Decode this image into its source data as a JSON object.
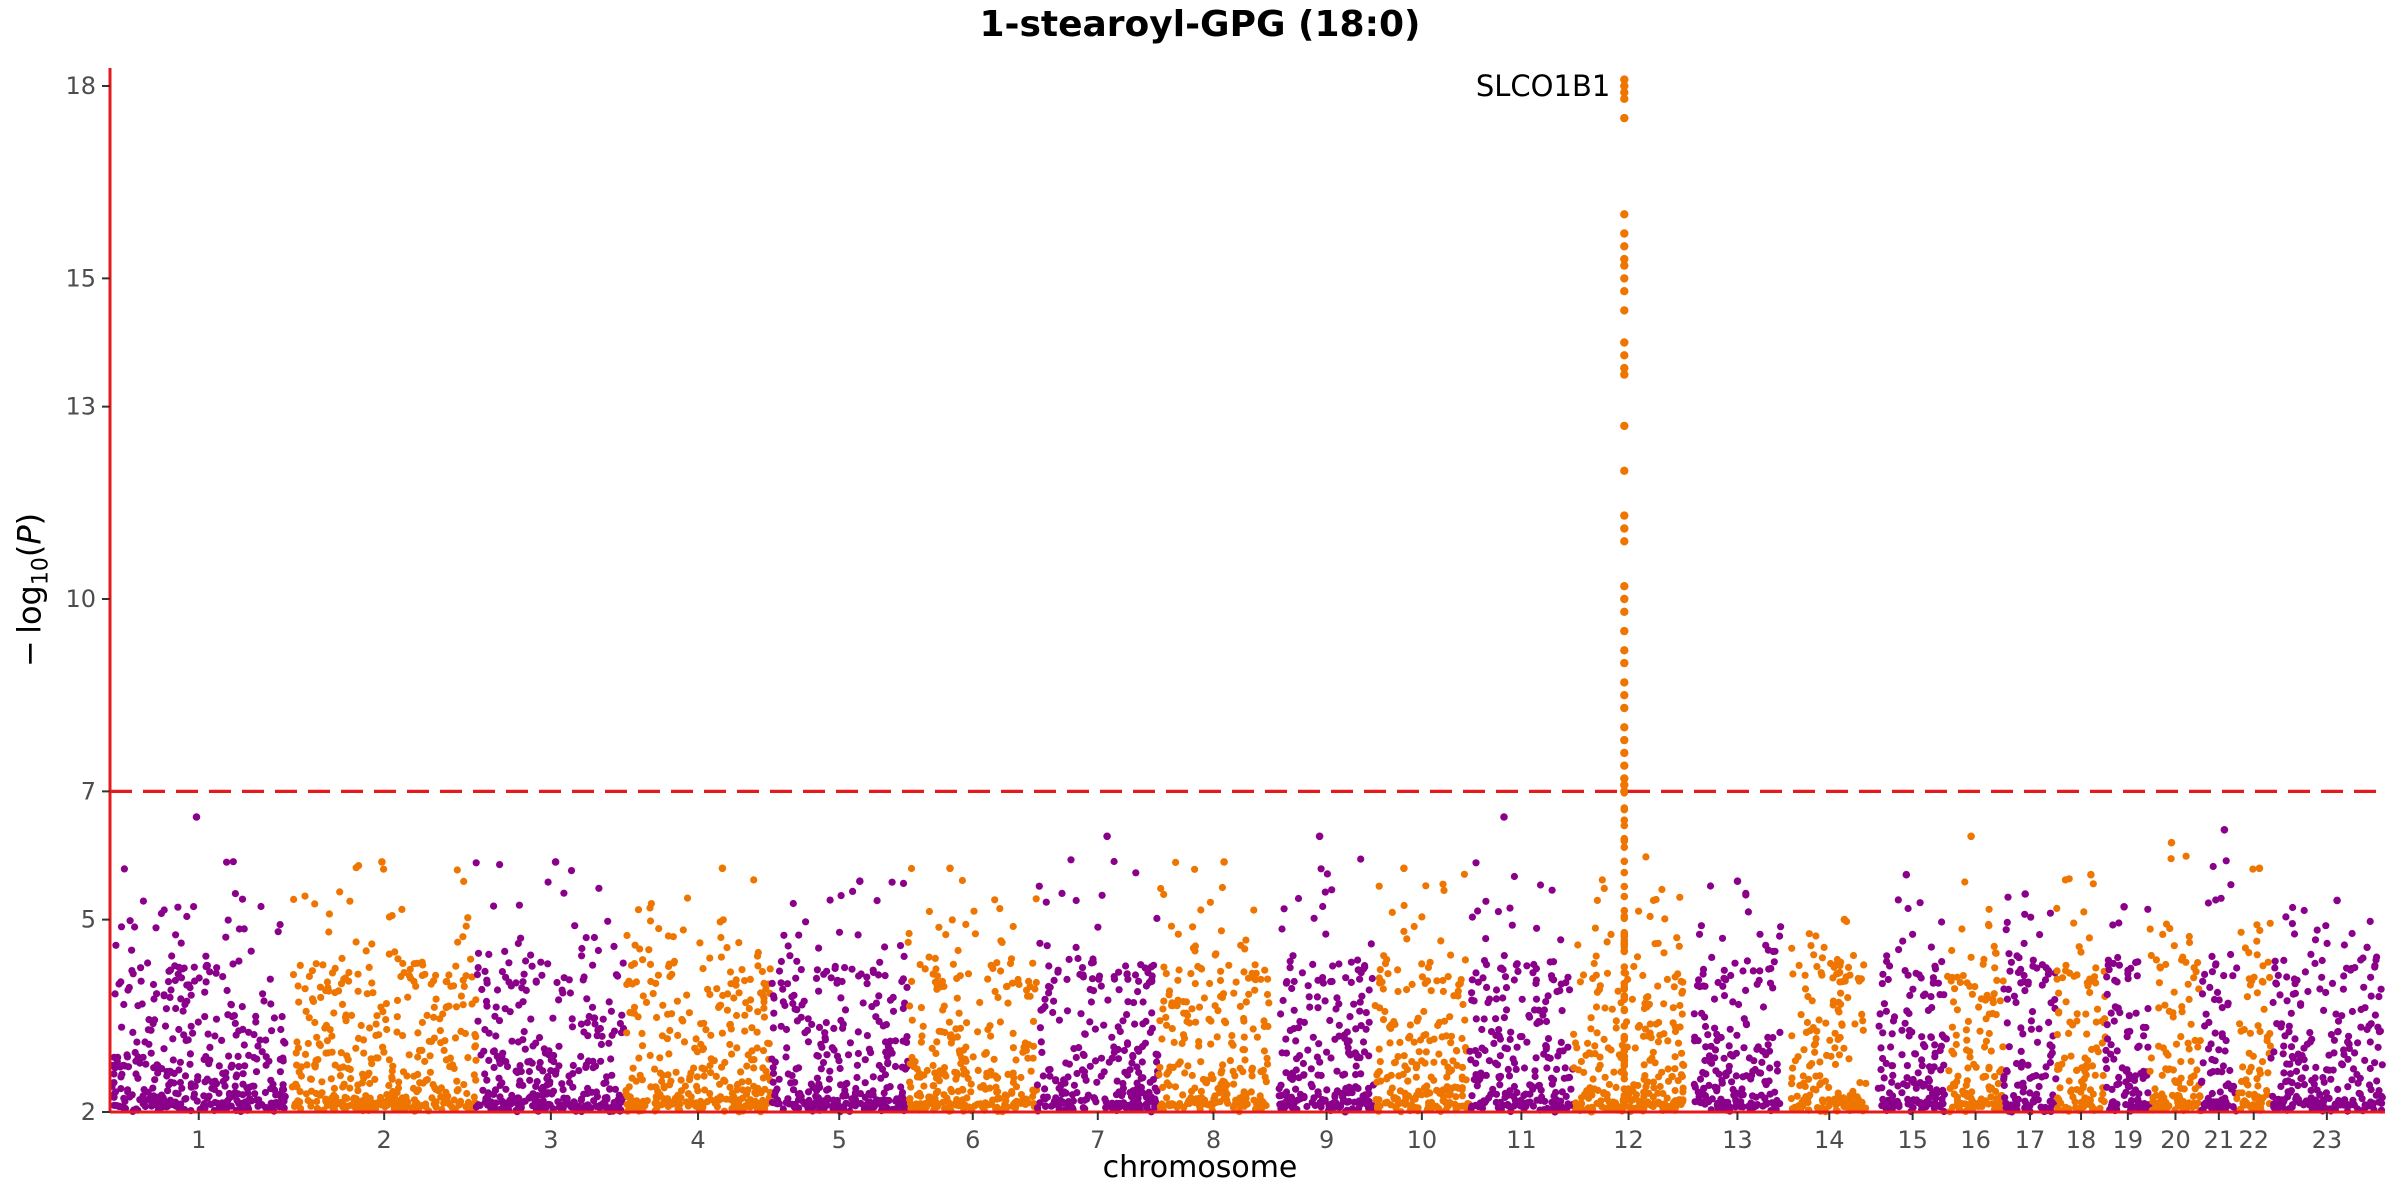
{
  "chart_data": {
    "type": "scatter",
    "subtype": "manhattan",
    "title": "1-stearoyl-GPG (18:0)",
    "xlabel": "chromosome",
    "ylabel": "−log10(P)",
    "ylim": [
      2,
      18.3
    ],
    "yticks": [
      2,
      5,
      7,
      10,
      13,
      15,
      18
    ],
    "threshold": 7,
    "threshold_style": "dashed",
    "colors": {
      "odd": "#8b008b",
      "even": "#ee7600",
      "axis": "#e41a1c",
      "threshold": "#e41a1c"
    },
    "chromosomes": [
      {
        "label": "1",
        "span": [
          0.0,
          10.2
        ],
        "peak": 6.6
      },
      {
        "label": "2",
        "span": [
          10.6,
          21.4
        ],
        "peak": 5.9
      },
      {
        "label": "3",
        "span": [
          21.4,
          30.2
        ],
        "peak": 5.9
      },
      {
        "label": "4",
        "span": [
          30.2,
          38.7
        ],
        "peak": 5.8
      },
      {
        "label": "5",
        "span": [
          38.7,
          46.8
        ],
        "peak": 5.6
      },
      {
        "label": "6",
        "span": [
          46.8,
          54.4
        ],
        "peak": 5.8
      },
      {
        "label": "7",
        "span": [
          54.4,
          61.5
        ],
        "peak": 6.3
      },
      {
        "label": "8",
        "span": [
          61.5,
          68.0
        ],
        "peak": 5.9
      },
      {
        "label": "9",
        "span": [
          68.6,
          74.2
        ],
        "peak": 6.3
      },
      {
        "label": "10",
        "span": [
          74.2,
          79.8
        ],
        "peak": 5.8
      },
      {
        "label": "11",
        "span": [
          79.8,
          85.9
        ],
        "peak": 6.6
      },
      {
        "label": "12",
        "span": [
          85.9,
          92.4
        ],
        "peak": 18.1
      },
      {
        "label": "13",
        "span": [
          93.0,
          98.1
        ],
        "peak": 5.6
      },
      {
        "label": "14",
        "span": [
          98.7,
          103.2
        ],
        "peak": 5.0
      },
      {
        "label": "15",
        "span": [
          103.8,
          107.9
        ],
        "peak": 5.7
      },
      {
        "label": "16",
        "span": [
          107.9,
          111.2
        ],
        "peak": 6.3
      },
      {
        "label": "17",
        "span": [
          111.2,
          114.3
        ],
        "peak": 5.4
      },
      {
        "label": "18",
        "span": [
          114.3,
          117.2
        ],
        "peak": 5.7
      },
      {
        "label": "19",
        "span": [
          117.2,
          119.8
        ],
        "peak": 5.2
      },
      {
        "label": "20",
        "span": [
          119.8,
          122.8
        ],
        "peak": 6.2
      },
      {
        "label": "21",
        "span": [
          122.8,
          124.9
        ],
        "peak": 6.4
      },
      {
        "label": "22",
        "span": [
          124.9,
          126.9
        ],
        "peak": 5.8
      },
      {
        "label": "23",
        "span": [
          126.9,
          133.5
        ],
        "peak": 5.3
      }
    ],
    "annotations": [
      {
        "label": "SLCO1B1",
        "chromosome": "12",
        "y": 18.0
      }
    ],
    "significant_hits": {
      "chromosome": "12",
      "values": [
        18.1,
        18.0,
        17.9,
        17.8,
        17.5,
        16.0,
        15.7,
        15.5,
        15.3,
        15.2,
        15.0,
        14.8,
        14.5,
        14.0,
        13.8,
        13.6,
        13.5,
        12.7,
        12.0,
        11.3,
        11.1,
        10.9,
        10.2,
        10.0,
        9.8,
        9.5,
        9.2,
        9.0,
        8.7,
        8.5,
        8.3,
        8.0,
        7.8,
        7.6,
        7.4,
        7.2,
        7.1,
        7.0
      ]
    }
  }
}
